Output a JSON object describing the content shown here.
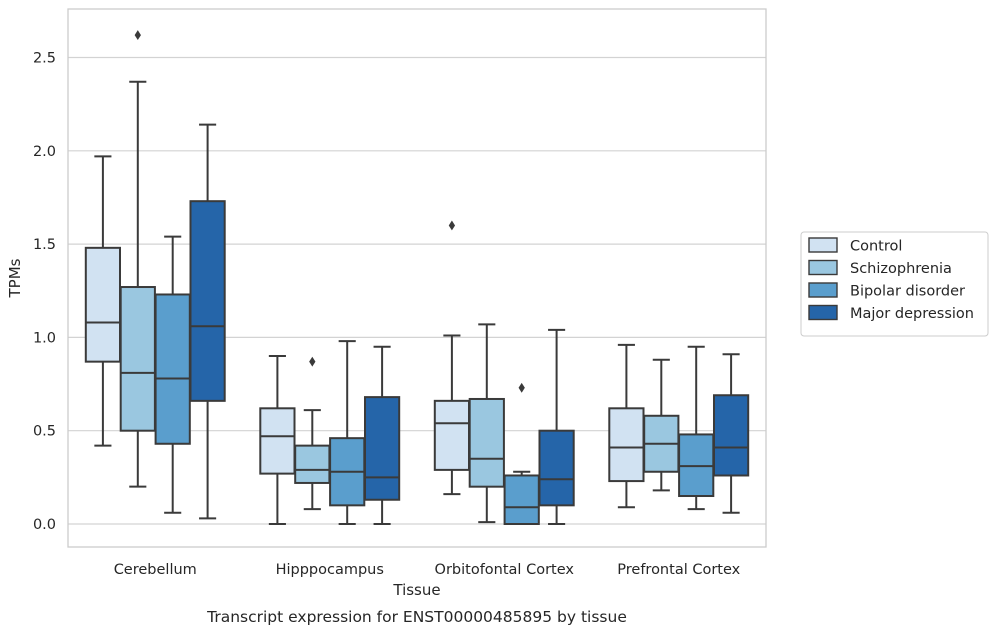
{
  "chart_data": {
    "type": "box",
    "title": "",
    "caption": "Transcript expression for ENST00000485895 by tissue",
    "xlabel": "Tissue",
    "ylabel": "TPMs",
    "ylim": [
      -0.13,
      2.75
    ],
    "yticks": [
      0.0,
      0.5,
      1.0,
      1.5,
      2.0,
      2.5
    ],
    "ytick_labels": [
      "0.0",
      "0.5",
      "1.0",
      "1.5",
      "2.0",
      "2.5"
    ],
    "grid": "horizontal",
    "legend_position": "right",
    "categories": [
      "Cerebellum",
      "Hipppocampus",
      "Orbitofontal Cortex",
      "Prefrontal Cortex"
    ],
    "series": [
      {
        "name": "Control",
        "color": "#d1e2f2",
        "boxes": [
          {
            "whislo": 0.42,
            "q1": 0.87,
            "med": 1.08,
            "q3": 1.48,
            "whishi": 1.97,
            "fliers": []
          },
          {
            "whislo": 0.0,
            "q1": 0.27,
            "med": 0.47,
            "q3": 0.62,
            "whishi": 0.9,
            "fliers": []
          },
          {
            "whislo": 0.16,
            "q1": 0.29,
            "med": 0.54,
            "q3": 0.66,
            "whishi": 1.01,
            "fliers": [
              1.6
            ]
          },
          {
            "whislo": 0.09,
            "q1": 0.23,
            "med": 0.41,
            "q3": 0.62,
            "whishi": 0.96,
            "fliers": []
          }
        ]
      },
      {
        "name": "Schizophrenia",
        "color": "#9ac7e0",
        "boxes": [
          {
            "whislo": 0.2,
            "q1": 0.5,
            "med": 0.81,
            "q3": 1.27,
            "whishi": 2.37,
            "fliers": [
              2.62
            ]
          },
          {
            "whislo": 0.08,
            "q1": 0.22,
            "med": 0.29,
            "q3": 0.42,
            "whishi": 0.61,
            "fliers": [
              0.87
            ]
          },
          {
            "whislo": 0.01,
            "q1": 0.2,
            "med": 0.35,
            "q3": 0.67,
            "whishi": 1.07,
            "fliers": []
          },
          {
            "whislo": 0.18,
            "q1": 0.28,
            "med": 0.43,
            "q3": 0.58,
            "whishi": 0.88,
            "fliers": []
          }
        ]
      },
      {
        "name": "Bipolar disorder",
        "color": "#5a9ecd",
        "boxes": [
          {
            "whislo": 0.06,
            "q1": 0.43,
            "med": 0.78,
            "q3": 1.23,
            "whishi": 1.54,
            "fliers": []
          },
          {
            "whislo": 0.0,
            "q1": 0.1,
            "med": 0.28,
            "q3": 0.46,
            "whishi": 0.98,
            "fliers": []
          },
          {
            "whislo": 0.0,
            "q1": 0.0,
            "med": 0.09,
            "q3": 0.26,
            "whishi": 0.28,
            "fliers": [
              0.73
            ]
          },
          {
            "whislo": 0.08,
            "q1": 0.15,
            "med": 0.31,
            "q3": 0.48,
            "whishi": 0.95,
            "fliers": []
          }
        ]
      },
      {
        "name": "Major depression",
        "color": "#2565a9",
        "boxes": [
          {
            "whislo": 0.03,
            "q1": 0.66,
            "med": 1.06,
            "q3": 1.73,
            "whishi": 2.14,
            "fliers": []
          },
          {
            "whislo": 0.0,
            "q1": 0.13,
            "med": 0.25,
            "q3": 0.68,
            "whishi": 0.95,
            "fliers": []
          },
          {
            "whislo": 0.0,
            "q1": 0.1,
            "med": 0.24,
            "q3": 0.5,
            "whishi": 1.04,
            "fliers": []
          },
          {
            "whislo": 0.06,
            "q1": 0.26,
            "med": 0.41,
            "q3": 0.69,
            "whishi": 0.91,
            "fliers": []
          }
        ]
      }
    ]
  }
}
